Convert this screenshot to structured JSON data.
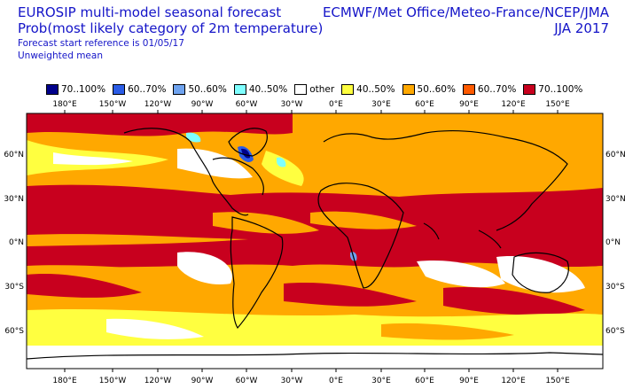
{
  "header": {
    "title": "EUROSIP multi-model seasonal forecast",
    "subtitle": "Prob(most likely category of 2m temperature)",
    "start_reference": "Forecast start reference is 01/05/17",
    "weighting": "Unweighted mean",
    "centres": "ECMWF/Met Office/Meteo-France/NCEP/JMA",
    "season": "JJA 2017"
  },
  "legend": [
    {
      "label": "70..100%",
      "color": "#00008b",
      "icon": "swatch-dark-blue"
    },
    {
      "label": "60..70%",
      "color": "#2b5ce6",
      "icon": "swatch-blue"
    },
    {
      "label": "50..60%",
      "color": "#6fa3ef",
      "icon": "swatch-light-blue"
    },
    {
      "label": "40..50%",
      "color": "#7fffff",
      "icon": "swatch-cyan"
    },
    {
      "label": "other",
      "color": "#ffffff",
      "icon": "swatch-white"
    },
    {
      "label": "40..50%",
      "color": "#ffff40",
      "icon": "swatch-yellow"
    },
    {
      "label": "50..60%",
      "color": "#ffa800",
      "icon": "swatch-orange"
    },
    {
      "label": "60..70%",
      "color": "#ff5a00",
      "icon": "swatch-dark-orange"
    },
    {
      "label": "70..100%",
      "color": "#c8001e",
      "icon": "swatch-red"
    }
  ],
  "axes": {
    "lon_labels": [
      "180°E",
      "150°W",
      "120°W",
      "90°W",
      "60°W",
      "30°W",
      "0°E",
      "30°E",
      "60°E",
      "90°E",
      "120°E",
      "150°E"
    ],
    "lat_labels": [
      "60°N",
      "30°N",
      "0°N",
      "30°S",
      "60°S"
    ]
  }
}
